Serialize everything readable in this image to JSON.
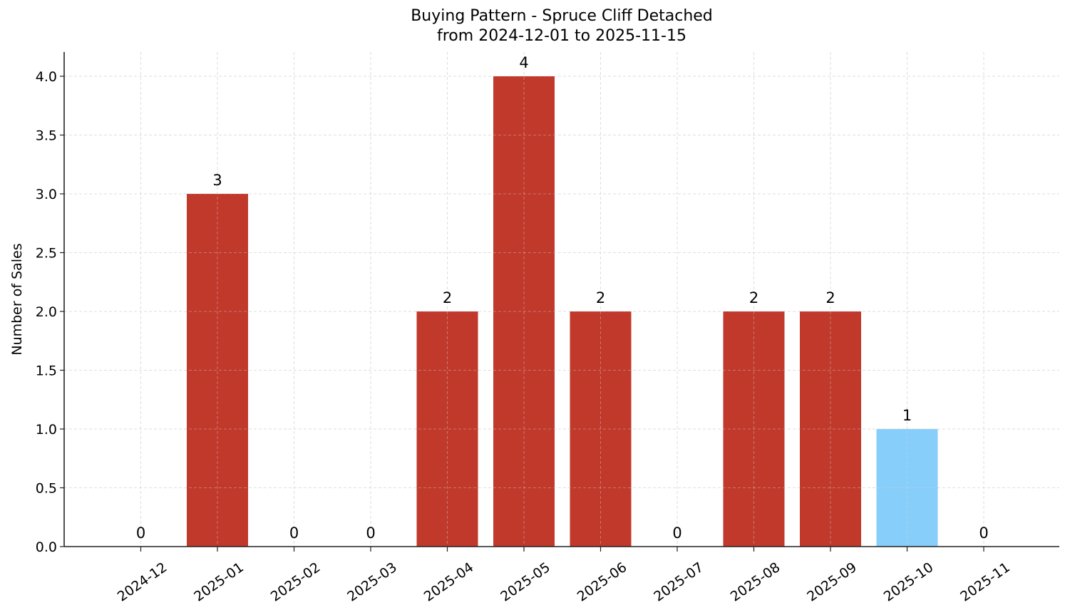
{
  "chart_data": {
    "type": "bar",
    "title": "Buying Pattern - Spruce Cliff Detached",
    "subtitle": "from 2024-12-01 to 2025-11-15",
    "xlabel": "",
    "ylabel": "Number of Sales",
    "categories": [
      "2024-12",
      "2025-01",
      "2025-02",
      "2025-03",
      "2025-04",
      "2025-05",
      "2025-06",
      "2025-07",
      "2025-08",
      "2025-09",
      "2025-10",
      "2025-11"
    ],
    "values": [
      0,
      3,
      0,
      0,
      2,
      4,
      2,
      0,
      2,
      2,
      1,
      0
    ],
    "data_labels": [
      "0",
      "3",
      "0",
      "0",
      "2",
      "4",
      "2",
      "0",
      "2",
      "2",
      "1",
      "0"
    ],
    "bar_colors": [
      "#c0392b",
      "#c0392b",
      "#c0392b",
      "#c0392b",
      "#c0392b",
      "#c0392b",
      "#c0392b",
      "#c0392b",
      "#c0392b",
      "#c0392b",
      "#87cefa",
      "#c0392b"
    ],
    "yticks": [
      "0.0",
      "0.5",
      "1.0",
      "1.5",
      "2.0",
      "2.5",
      "3.0",
      "3.5",
      "4.0"
    ],
    "ylim": [
      0,
      4.2
    ],
    "grid": true,
    "legend": null
  },
  "colors": {
    "primary_bar": "#c0392b",
    "highlight_bar": "#87cefa",
    "grid": "#d9d9d9",
    "axis": "#222222"
  }
}
